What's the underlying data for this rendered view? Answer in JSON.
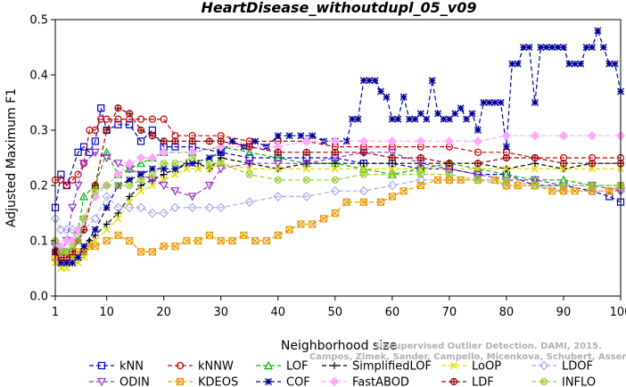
{
  "chart_data": {
    "type": "line",
    "title": "HeartDisease_withoutdupl_05_v09",
    "xlabel": "Neighborhood size",
    "ylabel": "Adjusted Maximum F1",
    "xlim": [
      1,
      100
    ],
    "ylim": [
      0.0,
      0.5
    ],
    "xticks": [
      1,
      10,
      20,
      30,
      40,
      50,
      60,
      70,
      80,
      90,
      100
    ],
    "yticks": [
      "0.0",
      "0.1",
      "0.2",
      "0.3",
      "0.4",
      "0.5"
    ],
    "grid": false,
    "legend_position": "bottom",
    "watermark": [
      "Unsupervised Outlier Detection. DAMI, 2015.",
      "Campos, Zimek, Sander, Campello, Micenkova, Schubert, Assent, Houle"
    ],
    "series": [
      {
        "name": "kNN",
        "color": "#0000cc",
        "marker": "square",
        "dash": "5,3",
        "x": [
          1,
          2,
          3,
          5,
          6,
          7,
          8,
          9,
          10,
          12,
          14,
          16,
          18,
          20,
          22,
          25,
          30,
          35,
          40,
          45,
          50,
          55,
          60,
          65,
          70,
          75,
          80,
          85,
          90,
          95,
          98,
          100
        ],
        "y": [
          0.16,
          0.22,
          0.2,
          0.26,
          0.27,
          0.26,
          0.28,
          0.34,
          0.3,
          0.31,
          0.31,
          0.28,
          0.3,
          0.27,
          0.27,
          0.27,
          0.26,
          0.25,
          0.25,
          0.25,
          0.25,
          0.24,
          0.24,
          0.23,
          0.23,
          0.22,
          0.22,
          0.2,
          0.2,
          0.19,
          0.18,
          0.17
        ]
      },
      {
        "name": "kNNW",
        "color": "#cc0000",
        "marker": "circle",
        "dash": "5,3",
        "x": [
          1,
          2,
          3,
          4,
          5,
          6,
          7,
          8,
          9,
          10,
          12,
          14,
          16,
          18,
          20,
          22,
          25,
          30,
          35,
          40,
          45,
          50,
          55,
          60,
          65,
          70,
          75,
          80,
          85,
          90,
          95,
          100
        ],
        "y": [
          0.21,
          0.21,
          0.2,
          0.21,
          0.22,
          0.24,
          0.3,
          0.3,
          0.32,
          0.32,
          0.32,
          0.32,
          0.32,
          0.32,
          0.32,
          0.29,
          0.29,
          0.29,
          0.28,
          0.28,
          0.28,
          0.27,
          0.27,
          0.27,
          0.27,
          0.27,
          0.26,
          0.26,
          0.25,
          0.25,
          0.25,
          0.25
        ]
      },
      {
        "name": "LOF",
        "color": "#00bb00",
        "marker": "triangle",
        "dash": "5,3",
        "x": [
          1,
          2,
          3,
          4,
          5,
          6,
          8,
          10,
          12,
          14,
          16,
          18,
          20,
          25,
          30,
          35,
          40,
          45,
          50,
          55,
          60,
          65,
          70,
          75,
          80,
          85,
          90,
          95,
          100
        ],
        "y": [
          0.1,
          0.08,
          0.08,
          0.07,
          0.12,
          0.18,
          0.2,
          0.26,
          0.22,
          0.23,
          0.24,
          0.25,
          0.26,
          0.26,
          0.27,
          0.26,
          0.25,
          0.24,
          0.24,
          0.23,
          0.22,
          0.23,
          0.24,
          0.23,
          0.22,
          0.21,
          0.21,
          0.2,
          0.2
        ]
      },
      {
        "name": "SimplifiedLOF",
        "color": "#000000",
        "marker": "plus",
        "dash": "5,3",
        "x": [
          1,
          2,
          3,
          4,
          5,
          6,
          7,
          8,
          10,
          12,
          14,
          16,
          18,
          20,
          22,
          24,
          26,
          28,
          30,
          35,
          40,
          45,
          50,
          55,
          60,
          65,
          70,
          75,
          80,
          85,
          90,
          95,
          100
        ],
        "y": [
          0.08,
          0.06,
          0.06,
          0.06,
          0.07,
          0.08,
          0.1,
          0.11,
          0.13,
          0.15,
          0.18,
          0.2,
          0.21,
          0.22,
          0.23,
          0.24,
          0.24,
          0.23,
          0.25,
          0.24,
          0.23,
          0.24,
          0.24,
          0.24,
          0.24,
          0.24,
          0.24,
          0.24,
          0.23,
          0.24,
          0.23,
          0.24,
          0.24
        ]
      },
      {
        "name": "LoOP",
        "color": "#dddd00",
        "marker": "x",
        "dash": "5,3",
        "x": [
          1,
          2,
          3,
          4,
          5,
          6,
          7,
          8,
          10,
          12,
          14,
          16,
          18,
          20,
          22,
          24,
          26,
          28,
          30,
          35,
          40,
          45,
          50,
          55,
          60,
          65,
          70,
          75,
          80,
          85,
          90,
          95,
          100
        ],
        "y": [
          0.06,
          0.05,
          0.05,
          0.06,
          0.06,
          0.07,
          0.09,
          0.1,
          0.12,
          0.14,
          0.17,
          0.19,
          0.2,
          0.21,
          0.22,
          0.23,
          0.23,
          0.23,
          0.24,
          0.23,
          0.23,
          0.23,
          0.23,
          0.23,
          0.23,
          0.23,
          0.23,
          0.23,
          0.23,
          0.23,
          0.23,
          0.23,
          0.23
        ]
      },
      {
        "name": "LDOF",
        "color": "#aaaaee",
        "marker": "diamond",
        "dash": "5,3",
        "x": [
          1,
          2,
          3,
          4,
          5,
          6,
          8,
          10,
          12,
          14,
          16,
          18,
          20,
          22,
          25,
          28,
          30,
          35,
          40,
          45,
          50,
          55,
          60,
          65,
          70,
          75,
          80,
          85,
          90,
          95,
          100
        ],
        "y": [
          0.14,
          0.12,
          0.12,
          0.12,
          0.11,
          0.12,
          0.14,
          0.18,
          0.16,
          0.16,
          0.16,
          0.15,
          0.15,
          0.16,
          0.16,
          0.16,
          0.16,
          0.17,
          0.18,
          0.18,
          0.19,
          0.19,
          0.2,
          0.21,
          0.21,
          0.21,
          0.2,
          0.2,
          0.19,
          0.19,
          0.19
        ]
      },
      {
        "name": "ODIN",
        "color": "#9933cc",
        "marker": "triangle-down",
        "dash": "5,3",
        "x": [
          1,
          2,
          3,
          4,
          5,
          6,
          8,
          10,
          12,
          14,
          16,
          18,
          20,
          22,
          25,
          28,
          30,
          35,
          40,
          45,
          50,
          55,
          60,
          65,
          70,
          75,
          80,
          85,
          90,
          95,
          100
        ],
        "y": [
          0.09,
          0.08,
          0.1,
          0.16,
          0.2,
          0.24,
          0.26,
          0.25,
          0.24,
          0.23,
          0.22,
          0.21,
          0.2,
          0.19,
          0.18,
          0.2,
          0.23,
          0.24,
          0.24,
          0.24,
          0.25,
          0.26,
          0.26,
          0.24,
          0.23,
          0.22,
          0.21,
          0.21,
          0.2,
          0.2,
          0.19
        ]
      },
      {
        "name": "KDEOS",
        "color": "#ee9900",
        "marker": "boxx",
        "dash": "5,3",
        "x": [
          1,
          2,
          3,
          4,
          5,
          6,
          7,
          8,
          10,
          12,
          14,
          16,
          18,
          20,
          22,
          24,
          26,
          28,
          30,
          32,
          34,
          36,
          38,
          40,
          42,
          44,
          46,
          48,
          50,
          52,
          55,
          58,
          60,
          62,
          65,
          68,
          70,
          72,
          75,
          78,
          80,
          82,
          85,
          88,
          90,
          92,
          95,
          98,
          100
        ],
        "y": [
          0.07,
          0.06,
          0.06,
          0.07,
          0.08,
          0.08,
          0.09,
          0.09,
          0.1,
          0.11,
          0.1,
          0.08,
          0.08,
          0.09,
          0.09,
          0.1,
          0.1,
          0.11,
          0.1,
          0.1,
          0.11,
          0.1,
          0.1,
          0.11,
          0.12,
          0.13,
          0.13,
          0.14,
          0.15,
          0.17,
          0.17,
          0.17,
          0.18,
          0.19,
          0.2,
          0.21,
          0.21,
          0.21,
          0.21,
          0.21,
          0.2,
          0.2,
          0.2,
          0.19,
          0.19,
          0.19,
          0.19,
          0.19,
          0.2
        ]
      },
      {
        "name": "COF",
        "color": "#000099",
        "marker": "star",
        "dash": "5,3",
        "x": [
          1,
          2,
          3,
          4,
          5,
          6,
          8,
          10,
          12,
          14,
          16,
          18,
          20,
          22,
          25,
          28,
          30,
          32,
          34,
          36,
          38,
          40,
          42,
          44,
          46,
          48,
          50,
          52,
          53,
          54,
          55,
          56,
          57,
          58,
          59,
          60,
          61,
          62,
          63,
          64,
          65,
          66,
          67,
          68,
          69,
          70,
          71,
          72,
          73,
          74,
          75,
          76,
          77,
          78,
          79,
          80,
          81,
          82,
          83,
          84,
          85,
          86,
          87,
          88,
          89,
          90,
          91,
          92,
          93,
          94,
          95,
          96,
          97,
          98,
          99,
          100
        ],
        "y": [
          0.08,
          0.06,
          0.06,
          0.06,
          0.07,
          0.09,
          0.12,
          0.16,
          0.2,
          0.21,
          0.22,
          0.23,
          0.23,
          0.23,
          0.24,
          0.25,
          0.26,
          0.28,
          0.27,
          0.28,
          0.27,
          0.29,
          0.29,
          0.29,
          0.29,
          0.28,
          0.28,
          0.28,
          0.32,
          0.32,
          0.39,
          0.39,
          0.39,
          0.37,
          0.36,
          0.32,
          0.32,
          0.36,
          0.32,
          0.32,
          0.33,
          0.32,
          0.39,
          0.33,
          0.32,
          0.32,
          0.33,
          0.34,
          0.32,
          0.33,
          0.3,
          0.35,
          0.35,
          0.35,
          0.35,
          0.27,
          0.42,
          0.42,
          0.45,
          0.45,
          0.35,
          0.45,
          0.45,
          0.45,
          0.45,
          0.45,
          0.42,
          0.42,
          0.42,
          0.45,
          0.45,
          0.48,
          0.45,
          0.42,
          0.42,
          0.37
        ]
      },
      {
        "name": "FastABOD",
        "color": "#ffaaff",
        "marker": "diamond-filled",
        "dash": "5,3",
        "x": [
          1,
          2,
          3,
          4,
          5,
          6,
          8,
          10,
          12,
          14,
          16,
          18,
          20,
          25,
          30,
          35,
          40,
          45,
          50,
          55,
          60,
          65,
          70,
          75,
          80,
          85,
          90,
          95,
          100
        ],
        "y": [
          0.1,
          0.09,
          0.1,
          0.1,
          0.12,
          0.14,
          0.18,
          0.2,
          0.22,
          0.24,
          0.25,
          0.25,
          0.26,
          0.26,
          0.27,
          0.27,
          0.27,
          0.28,
          0.28,
          0.28,
          0.28,
          0.28,
          0.28,
          0.28,
          0.29,
          0.29,
          0.29,
          0.29,
          0.29
        ]
      },
      {
        "name": "LDF",
        "color": "#990000",
        "marker": "circle-plus",
        "dash": "5,3",
        "x": [
          1,
          2,
          3,
          4,
          5,
          6,
          8,
          10,
          12,
          14,
          16,
          18,
          20,
          22,
          25,
          28,
          30,
          35,
          40,
          45,
          50,
          55,
          60,
          65,
          70,
          75,
          80,
          85,
          90,
          95,
          100
        ],
        "y": [
          0.08,
          0.07,
          0.07,
          0.08,
          0.1,
          0.12,
          0.2,
          0.3,
          0.34,
          0.33,
          0.3,
          0.29,
          0.28,
          0.28,
          0.28,
          0.28,
          0.28,
          0.27,
          0.26,
          0.26,
          0.26,
          0.26,
          0.25,
          0.25,
          0.24,
          0.24,
          0.25,
          0.25,
          0.24,
          0.24,
          0.24
        ]
      },
      {
        "name": "INFLO",
        "color": "#99cc33",
        "marker": "circle-x",
        "dash": "5,3",
        "x": [
          1,
          2,
          3,
          4,
          5,
          6,
          8,
          10,
          12,
          14,
          16,
          18,
          20,
          22,
          25,
          28,
          30,
          35,
          40,
          45,
          50,
          55,
          60,
          65,
          70,
          75,
          80,
          85,
          90,
          95,
          100
        ],
        "y": [
          0.1,
          0.08,
          0.08,
          0.09,
          0.1,
          0.14,
          0.19,
          0.2,
          0.2,
          0.2,
          0.21,
          0.22,
          0.24,
          0.24,
          0.25,
          0.24,
          0.24,
          0.22,
          0.21,
          0.21,
          0.21,
          0.22,
          0.22,
          0.22,
          0.22,
          0.21,
          0.21,
          0.2,
          0.2,
          0.2,
          0.2
        ]
      }
    ]
  }
}
